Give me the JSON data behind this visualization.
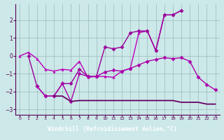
{
  "series1_x": [
    0,
    1,
    2,
    3,
    4,
    5,
    6,
    7,
    8,
    9,
    10,
    11,
    12,
    13,
    14,
    15,
    16,
    17,
    18,
    19,
    20,
    21,
    22,
    23
  ],
  "series1_y": [
    0.0,
    0.2,
    -0.15,
    -0.75,
    -0.85,
    -0.75,
    -0.8,
    -0.3,
    -1.2,
    -1.15,
    -1.15,
    -1.2,
    -0.85,
    -0.7,
    1.3,
    1.4,
    0.3,
    2.3,
    2.3,
    2.55,
    null,
    null,
    null,
    null
  ],
  "series2_x": [
    0,
    1,
    2,
    3,
    4,
    5,
    6,
    7,
    8,
    9,
    10,
    11,
    12,
    13,
    14,
    15,
    16,
    17,
    18,
    19,
    20,
    21,
    22,
    23
  ],
  "series2_y": [
    null,
    0.0,
    -1.7,
    -2.25,
    -2.25,
    -1.55,
    -1.55,
    -0.75,
    -1.15,
    -1.15,
    0.5,
    0.4,
    0.5,
    1.3,
    1.4,
    1.4,
    0.3,
    2.3,
    2.3,
    2.55,
    null,
    null,
    null,
    null
  ],
  "series3_x": [
    2,
    3,
    4,
    5,
    6,
    7,
    8,
    9,
    10,
    11,
    12,
    13,
    14,
    15,
    16,
    17,
    18,
    19,
    20,
    21,
    22,
    23
  ],
  "series3_y": [
    -1.7,
    -2.25,
    -2.25,
    -1.55,
    -2.55,
    -1.0,
    -1.15,
    -1.15,
    -0.9,
    -0.8,
    -0.85,
    -0.7,
    -0.5,
    -0.3,
    -0.2,
    -0.1,
    -0.15,
    -0.1,
    -0.3,
    -1.2,
    -1.6,
    -1.9
  ],
  "series4_x": [
    4,
    5,
    6,
    7,
    8,
    9,
    10,
    11,
    12,
    13,
    14,
    15,
    16,
    17,
    18,
    19,
    20,
    21,
    22,
    23
  ],
  "series4_y": [
    -2.25,
    -2.25,
    -2.55,
    -2.5,
    -2.5,
    -2.5,
    -2.5,
    -2.5,
    -2.5,
    -2.5,
    -2.5,
    -2.5,
    -2.5,
    -2.5,
    -2.5,
    -2.6,
    -2.6,
    -2.6,
    -2.7,
    -2.7
  ],
  "xlim": [
    -0.5,
    23.5
  ],
  "ylim": [
    -3.3,
    2.9
  ],
  "yticks": [
    -3,
    -2,
    -1,
    0,
    1,
    2
  ],
  "xticks": [
    0,
    1,
    2,
    3,
    4,
    5,
    6,
    7,
    8,
    9,
    10,
    11,
    12,
    13,
    14,
    15,
    16,
    17,
    18,
    19,
    20,
    21,
    22,
    23
  ],
  "xlabel": "Windchill (Refroidissement éolien,°C)",
  "bg_color": "#cce8e8",
  "label_bg": "#880099",
  "line_color1": "#bb00bb",
  "line_color2": "#990099",
  "line_color3": "#aa00aa",
  "line_color4": "#660066",
  "grid_color": "#99bbbb"
}
